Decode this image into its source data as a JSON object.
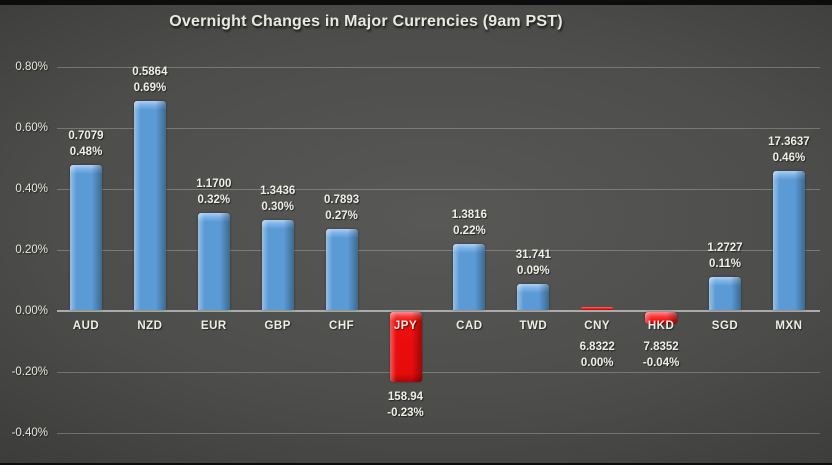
{
  "chart_data": {
    "type": "bar",
    "title": "Overnight Changes in Major Currencies (9am PST)",
    "xlabel": "",
    "ylabel": "",
    "ylim": [
      -0.45,
      0.85
    ],
    "grid": true,
    "legend": false,
    "y_ticks": [
      "0.80%",
      "0.60%",
      "0.40%",
      "0.20%",
      "0.00%",
      "-0.20%",
      "-0.40%"
    ],
    "categories": [
      "AUD",
      "NZD",
      "EUR",
      "GBP",
      "CHF",
      "JPY",
      "CAD",
      "TWD",
      "CNY",
      "HKD",
      "SGD",
      "MXN"
    ],
    "bars": [
      {
        "code": "AUD",
        "rate": "0.7079",
        "pct_label": "0.48%",
        "pct": 0.48,
        "color": "positive"
      },
      {
        "code": "NZD",
        "rate": "0.5864",
        "pct_label": "0.69%",
        "pct": 0.69,
        "color": "positive"
      },
      {
        "code": "EUR",
        "rate": "1.1700",
        "pct_label": "0.32%",
        "pct": 0.32,
        "color": "positive"
      },
      {
        "code": "GBP",
        "rate": "1.3436",
        "pct_label": "0.30%",
        "pct": 0.3,
        "color": "positive"
      },
      {
        "code": "CHF",
        "rate": "0.7893",
        "pct_label": "0.27%",
        "pct": 0.27,
        "color": "positive"
      },
      {
        "code": "JPY",
        "rate": "158.94",
        "pct_label": "-0.23%",
        "pct": -0.23,
        "color": "negative"
      },
      {
        "code": "CAD",
        "rate": "1.3816",
        "pct_label": "0.22%",
        "pct": 0.22,
        "color": "positive"
      },
      {
        "code": "TWD",
        "rate": "31.741",
        "pct_label": "0.09%",
        "pct": 0.09,
        "color": "positive"
      },
      {
        "code": "CNY",
        "rate": "6.8322",
        "pct_label": "0.00%",
        "pct": 0.0,
        "color": "negative"
      },
      {
        "code": "HKD",
        "rate": "7.8352",
        "pct_label": "-0.04%",
        "pct": -0.04,
        "color": "negative"
      },
      {
        "code": "SGD",
        "rate": "1.2727",
        "pct_label": "0.11%",
        "pct": 0.11,
        "color": "positive"
      },
      {
        "code": "MXN",
        "rate": "17.3637",
        "pct_label": "0.46%",
        "pct": 0.46,
        "color": "positive"
      }
    ],
    "colors": {
      "positive_bar": "#5b9bd5",
      "negative_bar": "#ee0d0d",
      "text": "#e9e9e1",
      "gridline": "rgba(255,255,255,0.24)",
      "axis_line": "#ababa9",
      "background_center": "#585856",
      "background_edge": "#272725"
    }
  }
}
